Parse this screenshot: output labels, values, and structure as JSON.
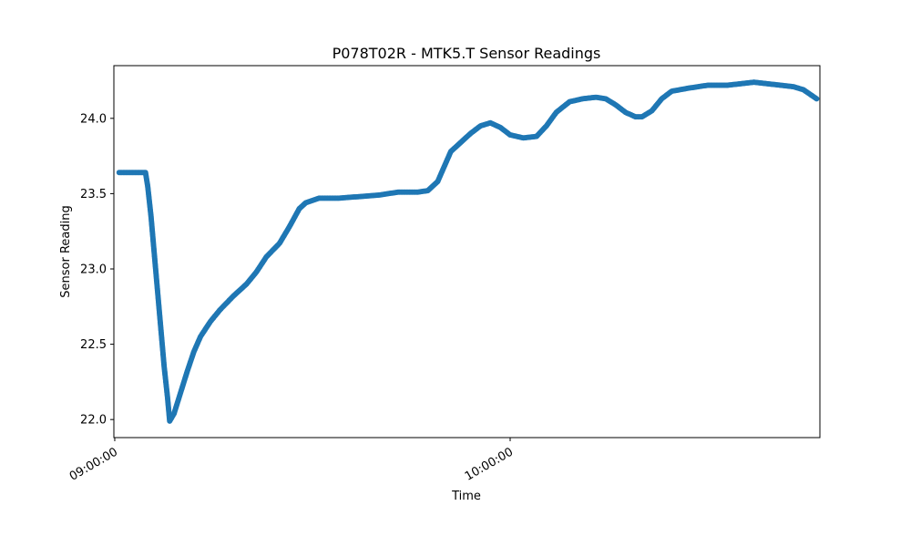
{
  "chart_data": {
    "type": "scatter",
    "title": "P078T02R - MTK5.T Sensor Readings",
    "xlabel": "Time",
    "ylabel": "Sensor Reading",
    "x_axis": {
      "type": "time",
      "ticks": [
        "09:00:00",
        "10:00:00"
      ],
      "range": [
        "08:59:52",
        "10:47:00"
      ]
    },
    "y_axis": {
      "range": [
        21.88,
        24.35
      ],
      "ticks": [
        22.0,
        22.5,
        23.0,
        23.5,
        24.0
      ],
      "tick_labels": [
        "22.0",
        "22.5",
        "23.0",
        "23.5",
        "24.0"
      ]
    },
    "grid": false,
    "legend": "none",
    "marker_color": "#1f77b4",
    "series": [
      {
        "points": [
          [
            "09:00:40",
            23.64
          ],
          [
            "09:01:30",
            23.64
          ],
          [
            "09:02:30",
            23.64
          ],
          [
            "09:03:30",
            23.64
          ],
          [
            "09:04:40",
            23.64
          ],
          [
            "09:05:00",
            23.55
          ],
          [
            "09:05:30",
            23.35
          ],
          [
            "09:06:00",
            23.1
          ],
          [
            "09:06:30",
            22.85
          ],
          [
            "09:07:00",
            22.6
          ],
          [
            "09:07:30",
            22.35
          ],
          [
            "09:08:00",
            22.15
          ],
          [
            "09:08:20",
            21.99
          ],
          [
            "09:09:00",
            22.04
          ],
          [
            "09:10:00",
            22.18
          ],
          [
            "09:11:00",
            22.32
          ],
          [
            "09:12:00",
            22.45
          ],
          [
            "09:13:00",
            22.55
          ],
          [
            "09:14:30",
            22.65
          ],
          [
            "09:16:00",
            22.73
          ],
          [
            "09:18:00",
            22.82
          ],
          [
            "09:20:00",
            22.9
          ],
          [
            "09:21:30",
            22.98
          ],
          [
            "09:23:00",
            23.08
          ],
          [
            "09:25:00",
            23.17
          ],
          [
            "09:26:30",
            23.28
          ],
          [
            "09:28:00",
            23.4
          ],
          [
            "09:29:00",
            23.44
          ],
          [
            "09:31:00",
            23.47
          ],
          [
            "09:34:00",
            23.47
          ],
          [
            "09:37:00",
            23.48
          ],
          [
            "09:40:00",
            23.49
          ],
          [
            "09:43:00",
            23.51
          ],
          [
            "09:46:00",
            23.51
          ],
          [
            "09:47:30",
            23.52
          ],
          [
            "09:49:00",
            23.58
          ],
          [
            "09:50:00",
            23.68
          ],
          [
            "09:51:00",
            23.78
          ],
          [
            "09:52:30",
            23.84
          ],
          [
            "09:54:00",
            23.9
          ],
          [
            "09:55:30",
            23.95
          ],
          [
            "09:57:00",
            23.97
          ],
          [
            "09:58:30",
            23.94
          ],
          [
            "10:00:00",
            23.89
          ],
          [
            "10:02:00",
            23.87
          ],
          [
            "10:04:00",
            23.88
          ],
          [
            "10:05:30",
            23.95
          ],
          [
            "10:07:00",
            24.04
          ],
          [
            "10:09:00",
            24.11
          ],
          [
            "10:11:00",
            24.13
          ],
          [
            "10:13:00",
            24.14
          ],
          [
            "10:14:30",
            24.13
          ],
          [
            "10:16:00",
            24.09
          ],
          [
            "10:17:30",
            24.04
          ],
          [
            "10:19:00",
            24.01
          ],
          [
            "10:20:00",
            24.01
          ],
          [
            "10:21:30",
            24.05
          ],
          [
            "10:23:00",
            24.13
          ],
          [
            "10:24:30",
            24.18
          ],
          [
            "10:27:00",
            24.2
          ],
          [
            "10:30:00",
            24.22
          ],
          [
            "10:33:00",
            24.22
          ],
          [
            "10:35:00",
            24.23
          ],
          [
            "10:37:00",
            24.24
          ],
          [
            "10:39:00",
            24.23
          ],
          [
            "10:41:00",
            24.22
          ],
          [
            "10:43:00",
            24.21
          ],
          [
            "10:44:30",
            24.19
          ],
          [
            "10:45:30",
            24.16
          ],
          [
            "10:46:30",
            24.13
          ]
        ]
      }
    ]
  }
}
